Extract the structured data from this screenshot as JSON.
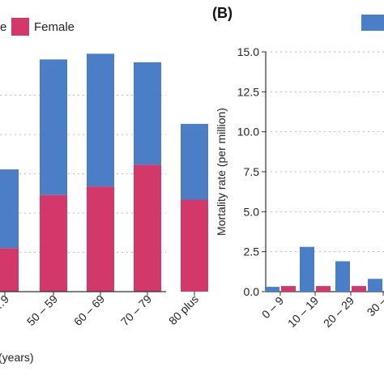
{
  "panel_b_label": "(B)",
  "legend_a": {
    "male_partial": "e",
    "female": "Female"
  },
  "colors": {
    "male": "#4a7fc8",
    "female": "#d3386a",
    "grid": "#bbbbbb",
    "axis": "#333333"
  },
  "chart_data": [
    {
      "type": "bar",
      "stacked": true,
      "categories": [
        "…9",
        "50 – 59",
        "60 – 69",
        "70 – 79",
        "80 plus"
      ],
      "xlabel": "(years)",
      "series": [
        {
          "name": "Female",
          "values": [
            4.6,
            10.2,
            11.1,
            13.4,
            9.7
          ]
        },
        {
          "name": "Male",
          "values": [
            8.3,
            14.3,
            14.0,
            10.8,
            8.0
          ]
        }
      ],
      "note": "Panel A is cropped on the left; y axis not visible",
      "grid": true
    },
    {
      "type": "bar",
      "categories": [
        "0 – 9",
        "10 – 19",
        "20 – 29",
        "30 –"
      ],
      "ylabel": "Mortality rate (per million)",
      "ylim": [
        0,
        15
      ],
      "yticks": [
        "0.0",
        "2.5",
        "5.0",
        "7.5",
        "10.0",
        "12.5",
        "15.0"
      ],
      "series": [
        {
          "name": "Male",
          "values": [
            0.3,
            2.8,
            1.9,
            0.8
          ]
        },
        {
          "name": "Female",
          "values": [
            0.35,
            0.35,
            0.35,
            0.35
          ]
        }
      ],
      "grid": true
    }
  ]
}
